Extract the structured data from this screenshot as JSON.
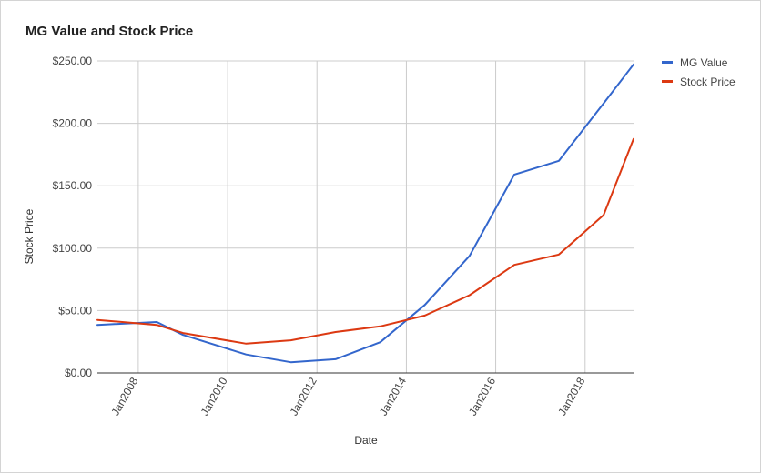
{
  "chart_data": {
    "type": "line",
    "title": "MG Value and Stock Price",
    "xlabel": "Date",
    "ylabel": "Stock Price",
    "x_ticks": [
      {
        "date": "2008-01-01",
        "label": "Jan2008"
      },
      {
        "date": "2010-01-01",
        "label": "Jan2010"
      },
      {
        "date": "2012-01-01",
        "label": "Jan2012"
      },
      {
        "date": "2014-01-01",
        "label": "Jan2014"
      },
      {
        "date": "2016-01-01",
        "label": "Jan2016"
      },
      {
        "date": "2018-01-01",
        "label": "Jan2018"
      }
    ],
    "y_ticks": [
      "$0.00",
      "$50.00",
      "$100.00",
      "$150.00",
      "$200.00",
      "$250.00"
    ],
    "ylim": [
      0,
      250
    ],
    "xlim": [
      "2007-02-01",
      "2019-02-01"
    ],
    "grid": true,
    "legend_position": "right",
    "series": [
      {
        "name": "MG Value",
        "color": "#3366cc",
        "points": [
          {
            "x": "2007-02-01",
            "y": 38.5
          },
          {
            "x": "2008-06-01",
            "y": 40.8
          },
          {
            "x": "2009-01-01",
            "y": 30.5
          },
          {
            "x": "2010-06-01",
            "y": 14.8
          },
          {
            "x": "2011-06-01",
            "y": 8.6
          },
          {
            "x": "2012-06-01",
            "y": 11.0
          },
          {
            "x": "2013-06-01",
            "y": 24.6
          },
          {
            "x": "2014-06-01",
            "y": 54.5
          },
          {
            "x": "2015-06-01",
            "y": 93.8
          },
          {
            "x": "2016-06-01",
            "y": 159.0
          },
          {
            "x": "2017-06-01",
            "y": 170.0
          },
          {
            "x": "2018-06-01",
            "y": 216.0
          },
          {
            "x": "2019-02-01",
            "y": 247.2
          }
        ]
      },
      {
        "name": "Stock Price",
        "color": "#dc3912",
        "points": [
          {
            "x": "2007-02-01",
            "y": 42.5
          },
          {
            "x": "2008-06-01",
            "y": 38.5
          },
          {
            "x": "2009-01-01",
            "y": 32.0
          },
          {
            "x": "2010-06-01",
            "y": 23.5
          },
          {
            "x": "2011-06-01",
            "y": 26.2
          },
          {
            "x": "2012-06-01",
            "y": 32.8
          },
          {
            "x": "2013-06-01",
            "y": 37.3
          },
          {
            "x": "2014-06-01",
            "y": 46.0
          },
          {
            "x": "2015-06-01",
            "y": 62.3
          },
          {
            "x": "2016-06-01",
            "y": 86.6
          },
          {
            "x": "2017-06-01",
            "y": 94.9
          },
          {
            "x": "2018-06-01",
            "y": 126.5
          },
          {
            "x": "2019-02-01",
            "y": 187.5
          }
        ]
      }
    ]
  }
}
